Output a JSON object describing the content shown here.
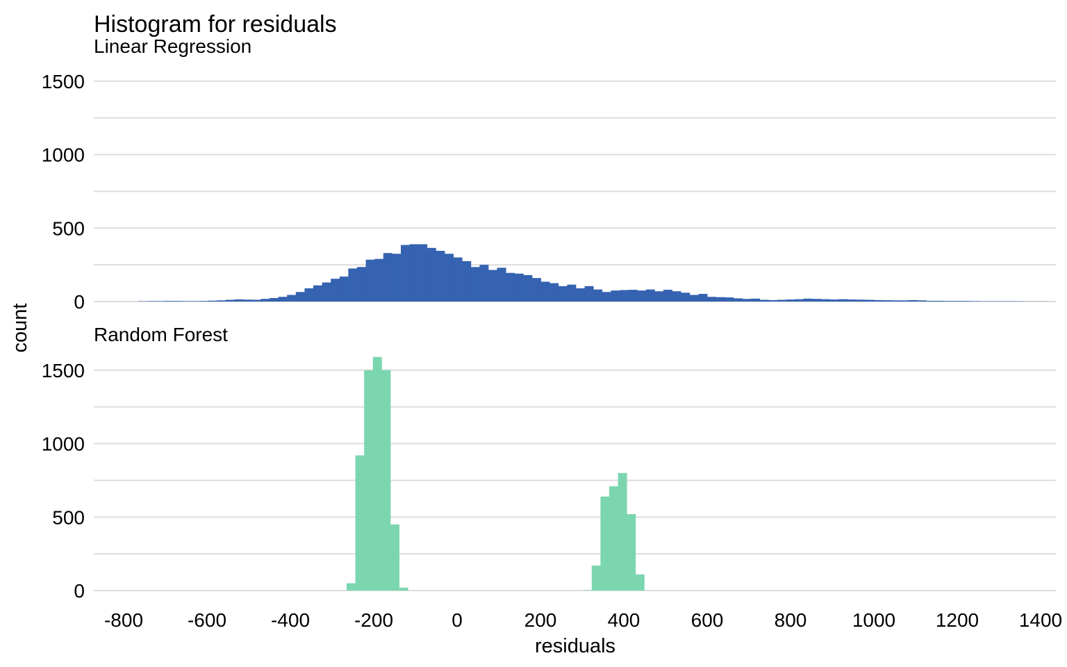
{
  "chart_data": {
    "type": "histogram",
    "title": "Histogram for residuals",
    "xlabel": "residuals",
    "ylabel": "count",
    "xlim": [
      -850,
      1450
    ],
    "ylim": [
      0,
      1600
    ],
    "x_ticks": [
      -800,
      -600,
      -400,
      -200,
      0,
      200,
      400,
      600,
      800,
      1000,
      1200,
      1400
    ],
    "x_tick_labels": [
      "-800",
      "-600",
      "-400",
      "-200",
      "0",
      "200",
      "400",
      "600",
      "800",
      "1000",
      "1200",
      "1400"
    ],
    "y_ticks": [
      0,
      500,
      1000,
      1500
    ],
    "y_tick_labels": [
      "0",
      "500",
      "1000",
      "1500"
    ],
    "y_minor_ticks": [
      250,
      750,
      1250
    ],
    "bin_width": 21,
    "grid": true,
    "panels": [
      {
        "name": "Linear Regression",
        "color": "#3563B1",
        "bin_start": -765,
        "counts": [
          2,
          3,
          3,
          4,
          4,
          3,
          3,
          4,
          6,
          8,
          12,
          15,
          13,
          12,
          18,
          24,
          32,
          45,
          65,
          90,
          110,
          130,
          155,
          170,
          225,
          235,
          285,
          290,
          330,
          325,
          385,
          390,
          390,
          365,
          345,
          325,
          300,
          275,
          235,
          250,
          215,
          230,
          195,
          190,
          180,
          160,
          135,
          125,
          105,
          115,
          90,
          105,
          82,
          65,
          75,
          78,
          80,
          75,
          82,
          70,
          80,
          70,
          60,
          45,
          52,
          32,
          30,
          28,
          22,
          18,
          20,
          12,
          10,
          12,
          14,
          16,
          20,
          18,
          16,
          14,
          16,
          14,
          13,
          12,
          10,
          9,
          8,
          8,
          10,
          8,
          5,
          5,
          4,
          4,
          4,
          3,
          2,
          2,
          2,
          2,
          2,
          1,
          1,
          1
        ]
      },
      {
        "name": "Random Forest",
        "color": "#7BD6B0",
        "bin_start": -265,
        "counts": [
          50,
          920,
          1500,
          1590,
          1500,
          450,
          20,
          0,
          0,
          0,
          0,
          0,
          0,
          0,
          0,
          0,
          0,
          0,
          0,
          0,
          0,
          0,
          0,
          0,
          0,
          0,
          0,
          3,
          170,
          640,
          710,
          800,
          520,
          110
        ]
      }
    ]
  }
}
